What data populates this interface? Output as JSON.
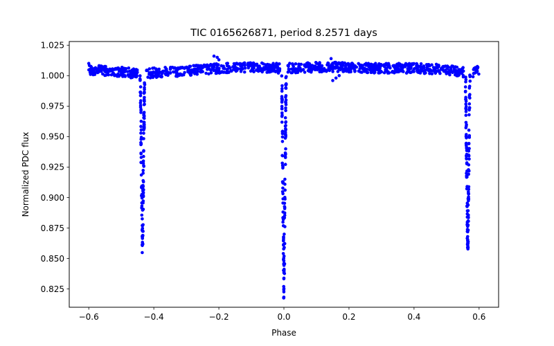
{
  "chart_data": {
    "type": "scatter",
    "title": "TIC 0165626871, period 8.2571 days",
    "xlabel": "Phase",
    "ylabel": "Normalized PDC flux",
    "xlim": [
      -0.66,
      0.66
    ],
    "ylim": [
      0.81,
      1.028
    ],
    "x_ticks": [
      -0.6,
      -0.4,
      -0.2,
      0.0,
      0.2,
      0.4,
      0.6
    ],
    "x_tick_labels": [
      "−0.6",
      "−0.4",
      "−0.2",
      "0.0",
      "0.2",
      "0.4",
      "0.6"
    ],
    "y_ticks": [
      0.825,
      0.85,
      0.875,
      0.9,
      0.925,
      0.95,
      0.975,
      1.0,
      1.025
    ],
    "y_tick_labels": [
      "0.825",
      "0.850",
      "0.875",
      "0.900",
      "0.925",
      "0.950",
      "0.975",
      "1.000",
      "1.025"
    ],
    "grid": false,
    "marker_color": "#0000ff",
    "series": [
      {
        "name": "Normalized PDC flux vs phase",
        "baseline": [
          [
            -0.6,
            1.005
          ],
          [
            -0.55,
            1.004
          ],
          [
            -0.5,
            1.003
          ],
          [
            -0.46,
            1.002
          ],
          [
            -0.42,
            1.002
          ],
          [
            -0.35,
            1.003
          ],
          [
            -0.3,
            1.004
          ],
          [
            -0.25,
            1.005
          ],
          [
            -0.2,
            1.006
          ],
          [
            -0.1,
            1.007
          ],
          [
            -0.01,
            1.006
          ],
          [
            0.01,
            1.006
          ],
          [
            0.1,
            1.007
          ],
          [
            0.2,
            1.007
          ],
          [
            0.3,
            1.006
          ],
          [
            0.4,
            1.006
          ],
          [
            0.5,
            1.005
          ],
          [
            0.55,
            1.003
          ],
          [
            0.58,
            1.003
          ],
          [
            0.6,
            1.004
          ]
        ],
        "eclipses": [
          {
            "center": -0.435,
            "min_flux": 0.854
          },
          {
            "center": 0.0,
            "min_flux": 0.816
          },
          {
            "center": 0.565,
            "min_flux": 0.854
          }
        ],
        "outliers": [
          [
            -0.215,
            1.016
          ],
          [
            -0.205,
            1.015
          ],
          [
            -0.2,
            1.013
          ],
          [
            0.145,
            1.014
          ],
          [
            0.15,
            0.996
          ],
          [
            0.16,
            0.998
          ],
          [
            0.17,
            1.0
          ],
          [
            -0.6,
            1.01
          ],
          [
            0.585,
            1.006
          ]
        ]
      }
    ]
  }
}
